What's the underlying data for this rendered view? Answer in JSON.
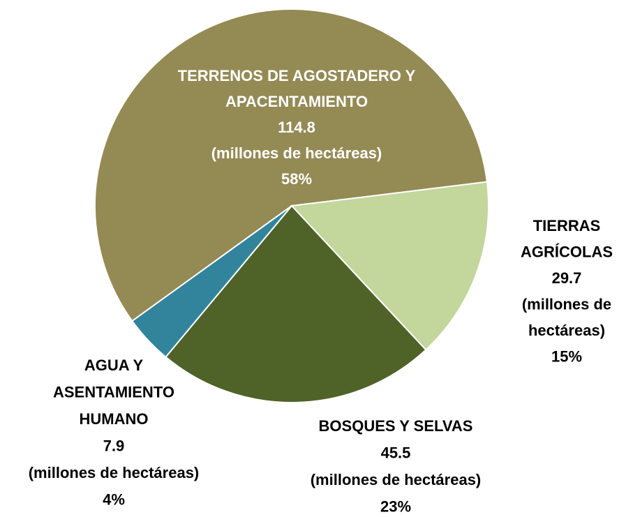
{
  "chart_data": {
    "type": "pie",
    "categories": [
      [
        "TERRENOS DE AGOSTADERO Y",
        "APACENTAMIENTO"
      ],
      [
        "TIERRAS",
        "AGRÍCOLAS"
      ],
      [
        "BOSQUES Y SELVAS"
      ],
      [
        "AGUA Y",
        "ASENTAMIENTO",
        "HUMANO"
      ]
    ],
    "values": [
      114.8,
      29.7,
      45.5,
      7.9
    ],
    "unit_lines": [
      [
        "(millones de hectáreas)"
      ],
      [
        "(millones de",
        "hectáreas)"
      ],
      [
        "(millones de hectáreas)"
      ],
      [
        "(millones de hectáreas)"
      ]
    ],
    "percent_labels": [
      "58%",
      "15%",
      "23%",
      "4%"
    ],
    "colors": [
      "#948a54",
      "#c3d69b",
      "#4f6228",
      "#31849b"
    ]
  }
}
